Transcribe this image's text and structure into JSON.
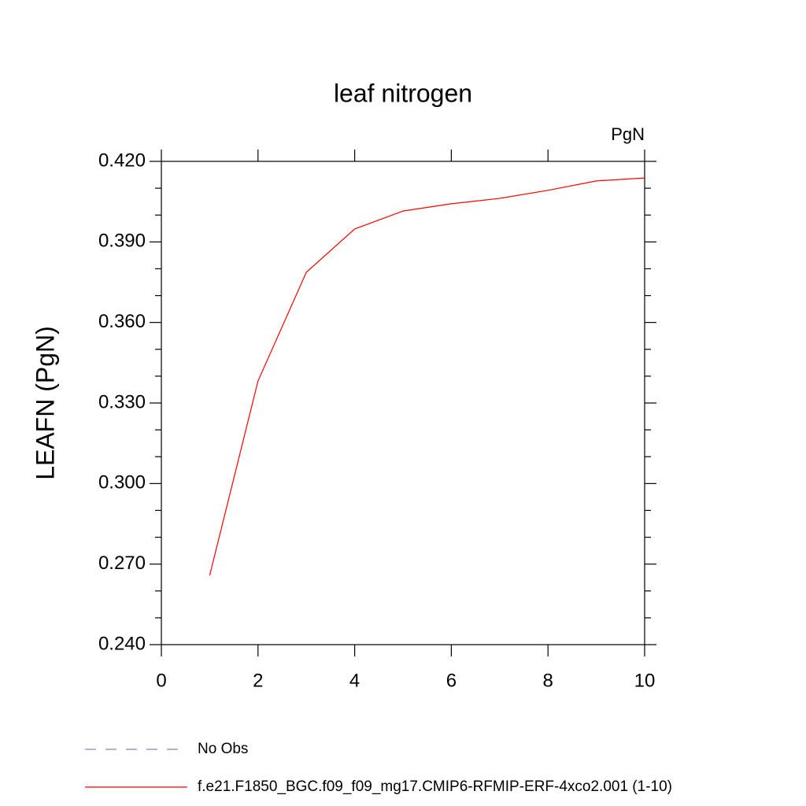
{
  "chart_data": {
    "type": "line",
    "title": "leaf nitrogen",
    "units": "PgN",
    "y_label": "LEAFN  (PgN)",
    "x": [
      1,
      2,
      3,
      4,
      5,
      6,
      7,
      8,
      9,
      10
    ],
    "series": [
      {
        "name": "No Obs",
        "color": "#8a7fc8",
        "dashed": true,
        "values": [
          null,
          null,
          null,
          null,
          null,
          null,
          null,
          null,
          null,
          null
        ]
      },
      {
        "name": "f.e21.F1850_BGC.f09_f09_mg17.CMIP6-RFMIP-ERF-4xco2.001 (1-10)",
        "color": "#ff0000",
        "dashed": false,
        "values": [
          0.2658,
          0.3382,
          0.3787,
          0.3948,
          0.4015,
          0.4042,
          0.4062,
          0.4092,
          0.4127,
          0.4138
        ]
      }
    ],
    "xlim": [
      0,
      10
    ],
    "xticks": [
      0,
      2,
      4,
      6,
      8,
      10
    ],
    "ylim": [
      0.24,
      0.42
    ],
    "yticks": [
      {
        "value": 0.24,
        "label": "0.240"
      },
      {
        "value": 0.27,
        "label": "0.270"
      },
      {
        "value": 0.3,
        "label": "0.300"
      },
      {
        "value": 0.33,
        "label": "0.330"
      },
      {
        "value": 0.36,
        "label": "0.360"
      },
      {
        "value": 0.39,
        "label": "0.390"
      },
      {
        "value": 0.42,
        "label": "0.420"
      }
    ],
    "yminorticks": [
      0.25,
      0.26,
      0.28,
      0.29,
      0.31,
      0.32,
      0.34,
      0.35,
      0.37,
      0.38,
      0.4,
      0.41
    ]
  }
}
